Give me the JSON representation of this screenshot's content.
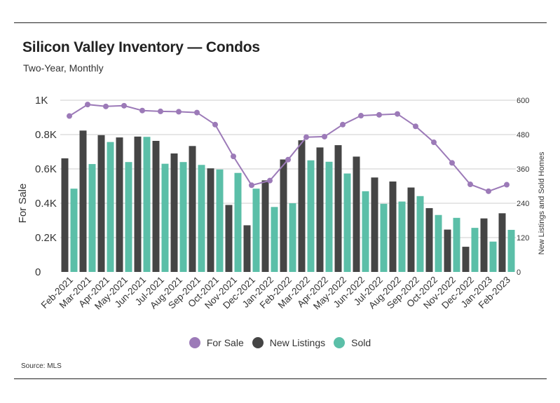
{
  "header": {
    "title": "Silicon Valley Inventory — Condos",
    "subtitle": "Two-Year, Monthly"
  },
  "footer": {
    "source": "Source: MLS"
  },
  "colors": {
    "for_sale": "#9c7ab8",
    "new_listings": "#454545",
    "sold": "#5bbfa8",
    "grid": "#cccccc",
    "text": "#333333"
  },
  "chart_data": {
    "type": "bar",
    "categories": [
      "Feb-2021",
      "Mar-2021",
      "Apr-2021",
      "May-2021",
      "Jun-2021",
      "Jul-2021",
      "Aug-2021",
      "Sep-2021",
      "Oct-2021",
      "Nov-2021",
      "Dec-2021",
      "Jan-2022",
      "Feb-2022",
      "Mar-2022",
      "Apr-2022",
      "May-2022",
      "Jun-2022",
      "Jul-2022",
      "Aug-2022",
      "Sep-2022",
      "Oct-2022",
      "Nov-2022",
      "Dec-2022",
      "Jan-2023",
      "Feb-2023"
    ],
    "ylabel": "For Sale",
    "y2label": "New Listings and Sold Homes",
    "ylim": [
      0,
      1000
    ],
    "y2lim": [
      0,
      600
    ],
    "yticks": [
      "0",
      "0.2K",
      "0.4K",
      "0.6K",
      "0.8K",
      "1K"
    ],
    "y2ticks": [
      "0",
      "120",
      "240",
      "360",
      "480",
      "600"
    ],
    "grid": true,
    "legend_position": "bottom",
    "series": [
      {
        "name": "For Sale",
        "type": "line",
        "axis": "left",
        "values": [
          908,
          975,
          964,
          968,
          940,
          935,
          933,
          928,
          858,
          673,
          505,
          532,
          654,
          785,
          788,
          858,
          910,
          915,
          920,
          848,
          755,
          635,
          510,
          470,
          508
        ]
      },
      {
        "name": "New Listings",
        "type": "bar",
        "axis": "right",
        "values": [
          397,
          494,
          478,
          470,
          473,
          458,
          414,
          440,
          362,
          234,
          163,
          320,
          393,
          460,
          435,
          443,
          403,
          330,
          316,
          295,
          223,
          148,
          88,
          187,
          205
        ]
      },
      {
        "name": "Sold",
        "type": "bar",
        "axis": "right",
        "values": [
          291,
          377,
          454,
          384,
          472,
          378,
          384,
          374,
          358,
          346,
          291,
          227,
          240,
          390,
          385,
          344,
          282,
          238,
          246,
          265,
          199,
          189,
          154,
          106,
          147
        ]
      }
    ]
  }
}
